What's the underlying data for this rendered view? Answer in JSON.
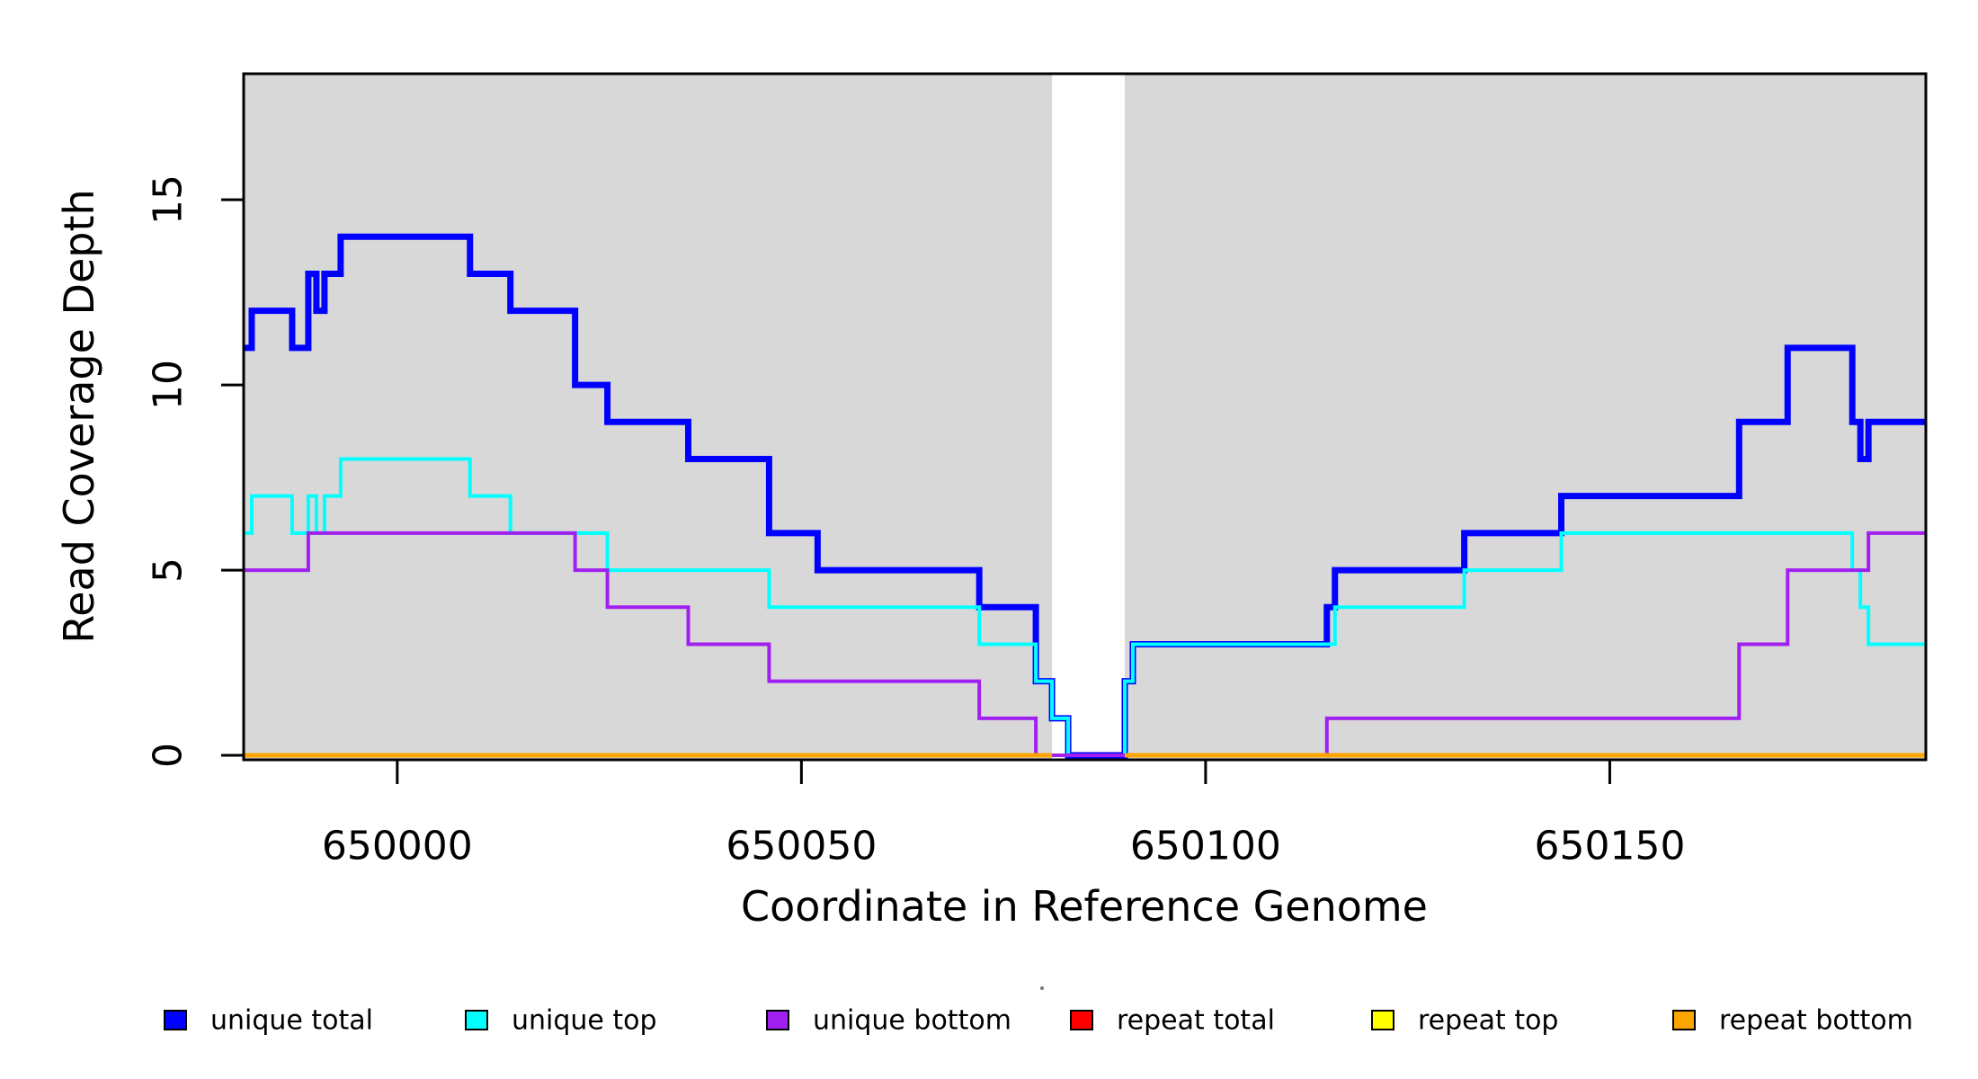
{
  "chart_data": {
    "type": "line",
    "step": "post",
    "title": "",
    "xlabel": "Coordinate in Reference Genome",
    "ylabel": "Read Coverage Depth",
    "xlim": [
      649981,
      650189.1
    ],
    "ylim": [
      -0.12,
      18.4
    ],
    "x_ticks": [
      650000,
      650050,
      650100,
      650150
    ],
    "y_ticks": [
      0,
      5,
      10,
      15
    ],
    "grid": false,
    "band_color": "#D8D8D8",
    "background_bands": [
      {
        "x0": 649981,
        "x1": 650081
      },
      {
        "x0": 650090,
        "x1": 650189.1
      }
    ],
    "series": [
      {
        "name": "repeat total",
        "color": "#FF0000",
        "lwd": 4,
        "end": 650189.1,
        "points": [
          [
            649981,
            0
          ]
        ]
      },
      {
        "name": "repeat top",
        "color": "#FFFF00",
        "lwd": 4,
        "end": 650189.1,
        "points": [
          [
            649981,
            0
          ]
        ]
      },
      {
        "name": "unique total",
        "color": "#0000FF",
        "lwd": 7,
        "end": 650189.1,
        "points": [
          [
            649981,
            11
          ],
          [
            649982,
            12
          ],
          [
            649987,
            11
          ],
          [
            649989,
            13
          ],
          [
            649990,
            12
          ],
          [
            649991,
            13
          ],
          [
            649993,
            14
          ],
          [
            650009,
            13
          ],
          [
            650014,
            12
          ],
          [
            650022,
            10
          ],
          [
            650026,
            9
          ],
          [
            650036,
            8
          ],
          [
            650046,
            6
          ],
          [
            650052,
            5
          ],
          [
            650072,
            4
          ],
          [
            650079,
            2
          ],
          [
            650081,
            1
          ],
          [
            650083,
            0
          ],
          [
            650090,
            2
          ],
          [
            650091,
            3
          ],
          [
            650115,
            4
          ],
          [
            650116,
            5
          ],
          [
            650132,
            6
          ],
          [
            650144,
            7
          ],
          [
            650166,
            9
          ],
          [
            650172,
            11
          ],
          [
            650180,
            9
          ],
          [
            650181,
            8
          ],
          [
            650182,
            9
          ]
        ]
      },
      {
        "name": "unique top",
        "color": "#00FFFF",
        "lwd": 4,
        "end": 650189.1,
        "points": [
          [
            649981,
            6
          ],
          [
            649982,
            7
          ],
          [
            649987,
            6
          ],
          [
            649989,
            7
          ],
          [
            649990,
            6
          ],
          [
            649991,
            7
          ],
          [
            649993,
            8
          ],
          [
            650009,
            7
          ],
          [
            650014,
            6
          ],
          [
            650026,
            5
          ],
          [
            650046,
            4
          ],
          [
            650072,
            3
          ],
          [
            650079,
            2
          ],
          [
            650081,
            1
          ],
          [
            650083,
            0
          ],
          [
            650090,
            2
          ],
          [
            650091,
            3
          ],
          [
            650116,
            4
          ],
          [
            650132,
            5
          ],
          [
            650144,
            6
          ],
          [
            650180,
            5
          ],
          [
            650181,
            4
          ],
          [
            650182,
            3
          ]
        ]
      },
      {
        "name": "unique bottom",
        "color": "#A020F0",
        "lwd": 4,
        "end": 650189.1,
        "points": [
          [
            649981,
            5
          ],
          [
            649989,
            6
          ],
          [
            650022,
            5
          ],
          [
            650026,
            4
          ],
          [
            650036,
            3
          ],
          [
            650046,
            2
          ],
          [
            650072,
            1
          ],
          [
            650079,
            0
          ],
          [
            650115,
            1
          ],
          [
            650166,
            3
          ],
          [
            650172,
            5
          ],
          [
            650182,
            6
          ]
        ]
      },
      {
        "name": "repeat bottom",
        "color": "#FFA500",
        "lwd": 5,
        "end": 650081,
        "points": [
          [
            649981,
            0
          ]
        ]
      },
      {
        "name": "repeat bottom",
        "color": "#FFA500",
        "lwd": 5,
        "end": 650189.1,
        "points": [
          [
            650090,
            0
          ]
        ]
      }
    ],
    "legend_position": "bottom",
    "legend": [
      {
        "label": "unique total",
        "color": "#0000FF"
      },
      {
        "label": "unique top",
        "color": "#00FFFF"
      },
      {
        "label": "unique bottom",
        "color": "#A020F0"
      },
      {
        "label": "repeat total",
        "color": "#FF0000"
      },
      {
        "label": "repeat top",
        "color": "#FFFF00"
      },
      {
        "label": "repeat bottom",
        "color": "#FFA500"
      }
    ]
  }
}
